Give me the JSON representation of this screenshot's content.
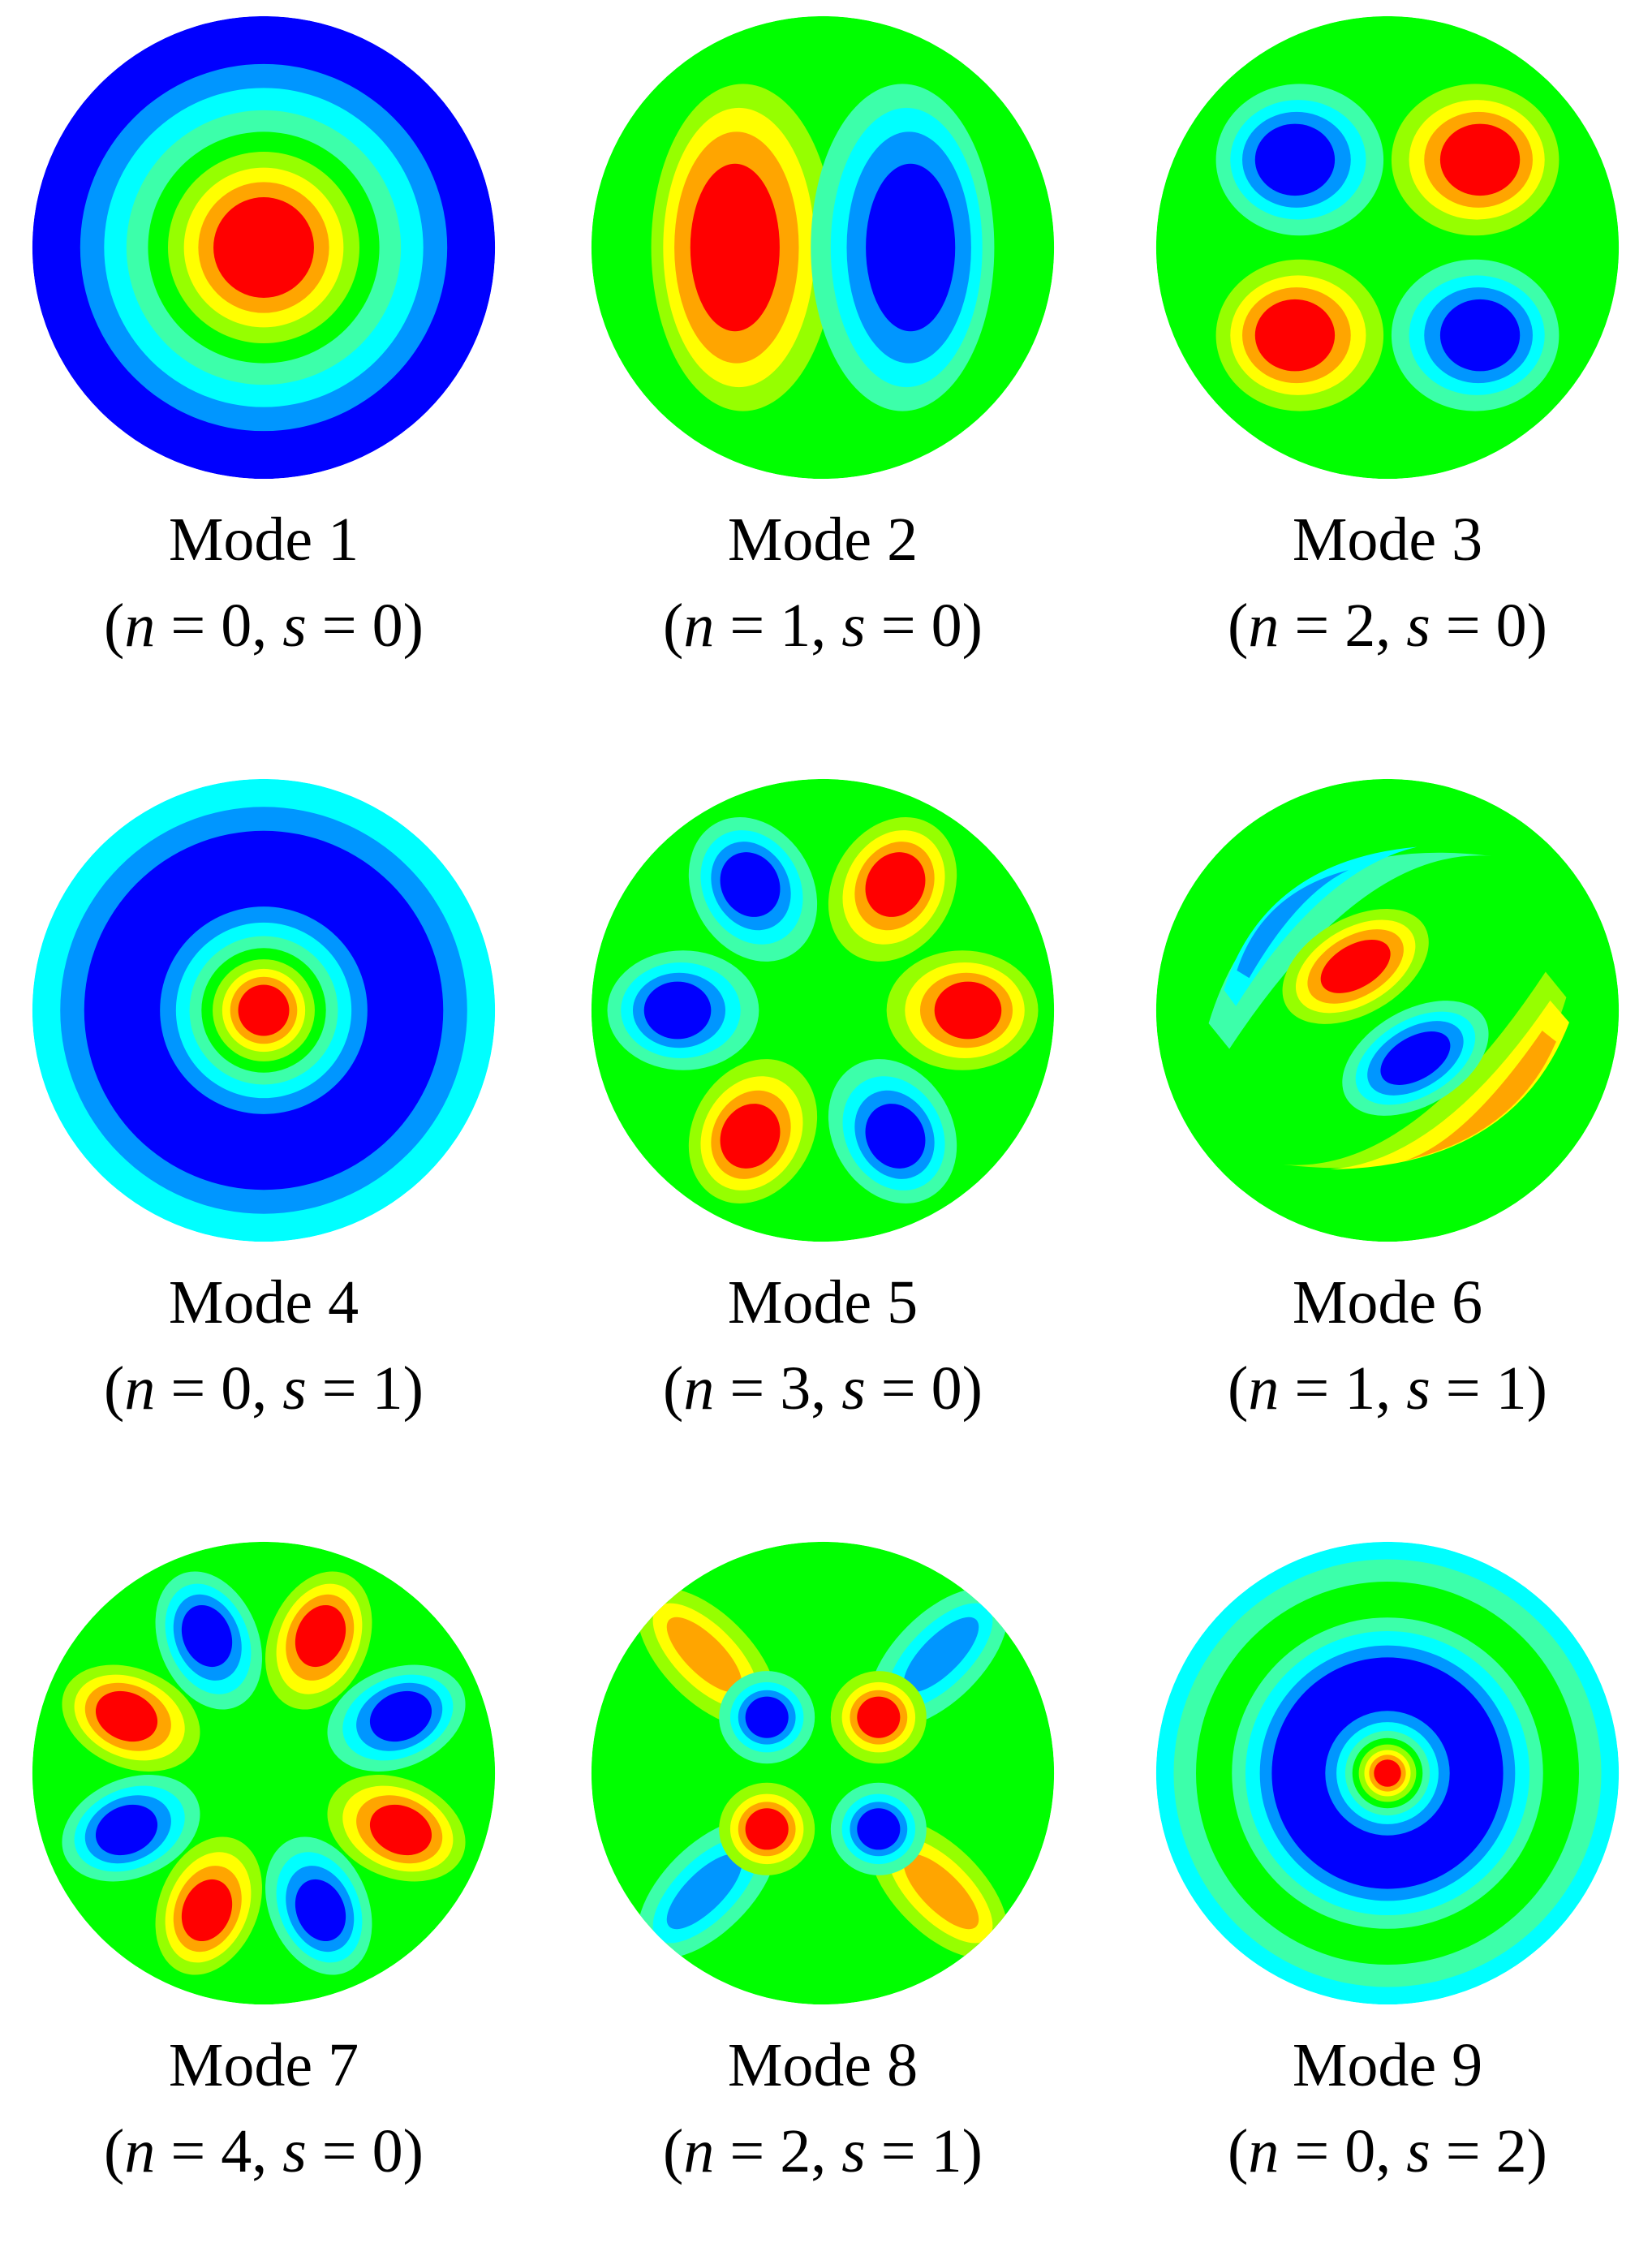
{
  "palette": {
    "c_-4": "#0000ff",
    "c_-3": "#0096ff",
    "c_-2": "#00ffff",
    "c_-1": "#3cffaa",
    "c_0": "#00ff00",
    "c_1": "#96ff00",
    "c_2": "#ffff00",
    "c_3": "#ffa500",
    "c_4": "#ff0000"
  },
  "modes": [
    {
      "label": "Mode 1",
      "n_name": "n",
      "s_name": "s",
      "eq": "=",
      "n": "0",
      "s": "0",
      "pattern": "radial"
    },
    {
      "label": "Mode 2",
      "n_name": "n",
      "s_name": "s",
      "eq": "=",
      "n": "1",
      "s": "0",
      "pattern": "dipole-horizontal"
    },
    {
      "label": "Mode 3",
      "n_name": "n",
      "s_name": "s",
      "eq": "=",
      "n": "2",
      "s": "0",
      "pattern": "quadrupole"
    },
    {
      "label": "Mode 4",
      "n_name": "n",
      "s_name": "s",
      "eq": "=",
      "n": "0",
      "s": "1",
      "pattern": "radial"
    },
    {
      "label": "Mode 5",
      "n_name": "n",
      "s_name": "s",
      "eq": "=",
      "n": "3",
      "s": "0",
      "pattern": "hexapole"
    },
    {
      "label": "Mode 6",
      "n_name": "n",
      "s_name": "s",
      "eq": "=",
      "n": "1",
      "s": "1",
      "pattern": "dipole-rotated"
    },
    {
      "label": "Mode 7",
      "n_name": "n",
      "s_name": "s",
      "eq": "=",
      "n": "4",
      "s": "0",
      "pattern": "octopole"
    },
    {
      "label": "Mode 8",
      "n_name": "n",
      "s_name": "s",
      "eq": "=",
      "n": "2",
      "s": "1",
      "pattern": "quadrupole-ring"
    },
    {
      "label": "Mode 9",
      "n_name": "n",
      "s_name": "s",
      "eq": "=",
      "n": "0",
      "s": "2",
      "pattern": "radial"
    }
  ]
}
